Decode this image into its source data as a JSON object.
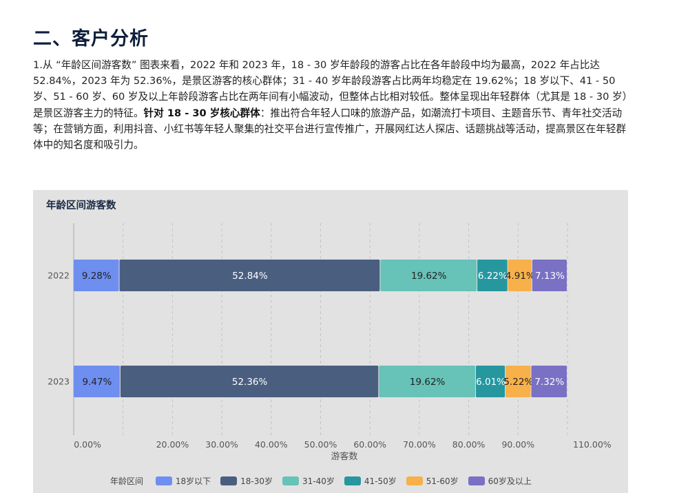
{
  "section": {
    "title": "二、客户分析",
    "paragraph": {
      "text_a": "1.从 “年龄区间游客数” 图表来看，2022 年和 2023 年，18 - 30 岁年龄段的游客占比在各年龄段中均为最高，2022 年占比达 52.84%，2023 年为 52.36%，是景区游客的核心群体；31 - 40 岁年龄段游客占比两年均稳定在 19.62%；18 岁以下、41 - 50 岁、51 - 60 岁、60 岁及以上年龄段游客占比在两年间有小幅波动，但整体占比相对较低。整体呈现出年轻群体（尤其是 18 - 30 岁）是景区游客主力的特征。",
      "bold": "针对 18 - 30 岁核心群体",
      "text_b": "：推出符合年轻人口味的旅游产品，如潮流打卡项目、主题音乐节、青年社交活动等；在营销方面，利用抖音、小红书等年轻人聚集的社交平台进行宣传推广，开展网红达人探店、话题挑战等活动，提高景区在年轻群体中的知名度和吸引力。"
    }
  },
  "chart_data": {
    "type": "bar",
    "orientation": "horizontal",
    "stacked": true,
    "title": "年龄区间游客数",
    "xlabel": "游客数",
    "ylabel": "",
    "categories": [
      "2022",
      "2023"
    ],
    "x_tick_labels": [
      "0.00%",
      "20.00%",
      "30.00%",
      "40.00%",
      "50.00%",
      "60.00%",
      "70.00%",
      "80.00%",
      "90.00%",
      "110.00%"
    ],
    "xlim": [
      0,
      100
    ],
    "grid": "vertical dashed",
    "legend_position": "bottom",
    "legend_title": "年龄区间",
    "series": [
      {
        "name": "18岁以下",
        "color": "#6e8ef0",
        "values": [
          9.28,
          9.47
        ],
        "labels": [
          "9.28%",
          "9.47%"
        ],
        "label_color": "#222222"
      },
      {
        "name": "18-30岁",
        "color": "#4a5e80",
        "values": [
          52.84,
          52.36
        ],
        "labels": [
          "52.84%",
          "52.36%"
        ],
        "label_color": "#ffffff"
      },
      {
        "name": "31-40岁",
        "color": "#67c2b7",
        "values": [
          19.62,
          19.62
        ],
        "labels": [
          "19.62%",
          "19.62%"
        ],
        "label_color": "#222222"
      },
      {
        "name": "41-50岁",
        "color": "#26979f",
        "values": [
          6.22,
          6.01
        ],
        "labels": [
          "6.22%",
          "6.01%"
        ],
        "label_color": "#ffffff"
      },
      {
        "name": "51-60岁",
        "color": "#f7b04a",
        "values": [
          4.91,
          5.22
        ],
        "labels": [
          "4.91%",
          "5.22%"
        ],
        "label_color": "#222222"
      },
      {
        "name": "60岁及以上",
        "color": "#7a70c4",
        "values": [
          7.13,
          7.32
        ],
        "labels": [
          "7.13%",
          "7.32%"
        ],
        "label_color": "#ffffff"
      }
    ]
  }
}
